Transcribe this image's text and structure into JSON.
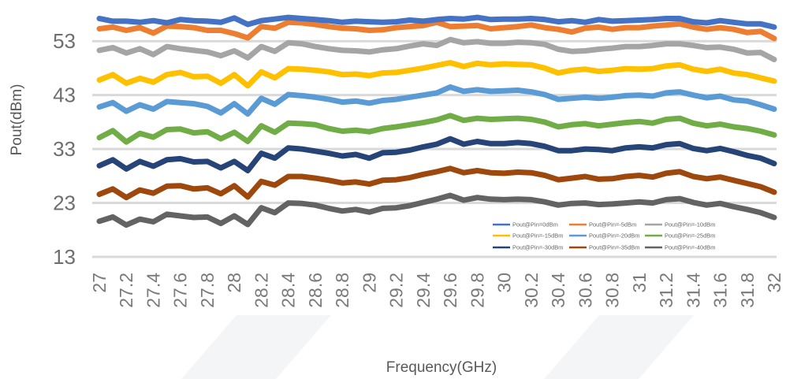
{
  "chart_data": {
    "type": "line",
    "title": "",
    "xlabel": "Frequency(GHz)",
    "ylabel": "Pout(dBm)",
    "ylim": [
      13,
      58
    ],
    "yticks": [
      "13",
      "23",
      "33",
      "43",
      "53"
    ],
    "grid": true,
    "legend_position": "bottom-right",
    "x": [
      27,
      27.1,
      27.2,
      27.3,
      27.4,
      27.5,
      27.6,
      27.7,
      27.8,
      27.9,
      28,
      28.1,
      28.2,
      28.3,
      28.4,
      28.5,
      28.6,
      28.7,
      28.8,
      28.9,
      29,
      29.1,
      29.2,
      29.3,
      29.4,
      29.5,
      29.6,
      29.7,
      29.8,
      29.9,
      30,
      30.1,
      30.2,
      30.3,
      30.4,
      30.5,
      30.6,
      30.7,
      30.8,
      30.9,
      31,
      31.1,
      31.2,
      31.3,
      31.4,
      31.5,
      31.6,
      31.7,
      31.8,
      31.9,
      32
    ],
    "xticks": [
      "27",
      "27.2",
      "27.4",
      "27.6",
      "27.8",
      "28",
      "28.2",
      "28.4",
      "28.6",
      "28.8",
      "29",
      "29.2",
      "29.4",
      "29.6",
      "29.8",
      "30",
      "30.2",
      "30.4",
      "30.6",
      "30.8",
      "31",
      "31.2",
      "31.4",
      "31.6",
      "31.8",
      "32"
    ],
    "series": [
      {
        "name": "Pout@Pin=0dBm",
        "color": "#4472C4",
        "values": [
          57.2,
          56.7,
          56.7,
          56.5,
          56.8,
          56.4,
          57.0,
          56.8,
          56.7,
          56.5,
          57.3,
          56.1,
          56.8,
          57.1,
          57.4,
          57.2,
          57.0,
          56.8,
          56.5,
          56.7,
          56.6,
          56.5,
          56.6,
          56.9,
          56.7,
          57.0,
          57.2,
          57.1,
          57.4,
          57.0,
          57.1,
          57.1,
          57.2,
          57.0,
          56.6,
          56.8,
          56.5,
          57.0,
          56.7,
          56.8,
          56.9,
          57.0,
          57.2,
          57.2,
          56.6,
          56.4,
          56.8,
          56.5,
          56.2,
          56.2,
          55.6
        ]
      },
      {
        "name": "Pout@Pin=-5dBm",
        "color": "#ED7D31",
        "values": [
          55.3,
          55.6,
          55.0,
          55.5,
          54.5,
          55.8,
          55.7,
          55.5,
          55.0,
          55.0,
          54.4,
          53.6,
          55.7,
          55.4,
          56.5,
          56.4,
          56.1,
          55.7,
          55.4,
          55.3,
          55.0,
          55.1,
          55.5,
          55.7,
          55.9,
          56.5,
          55.7,
          55.8,
          55.9,
          55.3,
          55.5,
          55.7,
          56.0,
          55.5,
          55.2,
          54.7,
          55.4,
          55.6,
          55.2,
          55.5,
          55.5,
          55.8,
          56.0,
          56.2,
          55.6,
          55.2,
          55.5,
          55.2,
          54.6,
          54.8,
          53.5
        ]
      },
      {
        "name": "Pout@Pin=-10dBm",
        "color": "#A5A5A5",
        "values": [
          51.3,
          51.8,
          50.8,
          51.6,
          50.5,
          52.0,
          51.6,
          51.3,
          51.0,
          50.3,
          51.2,
          49.9,
          52.0,
          51.1,
          52.7,
          52.5,
          52.0,
          51.6,
          51.3,
          51.2,
          51.0,
          51.4,
          51.6,
          52.1,
          52.5,
          52.2,
          53.3,
          52.7,
          52.9,
          52.6,
          52.6,
          52.8,
          52.7,
          52.4,
          51.5,
          51.1,
          51.2,
          51.5,
          51.7,
          52.0,
          52.0,
          52.2,
          52.5,
          52.5,
          52.2,
          51.8,
          51.9,
          51.5,
          50.8,
          50.9,
          49.6
        ]
      },
      {
        "name": "Pout@Pin=-15dBm",
        "color": "#FFC000",
        "values": [
          45.8,
          46.8,
          45.2,
          46.1,
          45.4,
          46.8,
          47.2,
          46.4,
          46.5,
          45.2,
          46.8,
          44.7,
          47.3,
          46.2,
          47.9,
          47.8,
          47.6,
          47.3,
          46.8,
          46.9,
          46.6,
          47.1,
          47.2,
          47.6,
          48.0,
          48.5,
          49.0,
          48.3,
          48.9,
          48.6,
          48.8,
          48.7,
          48.6,
          48.0,
          47.1,
          47.6,
          47.8,
          47.4,
          47.6,
          47.9,
          47.8,
          47.9,
          48.4,
          48.6,
          47.8,
          47.4,
          47.8,
          47.1,
          46.8,
          46.2,
          45.6
        ]
      },
      {
        "name": "Pout@Pin=-20dBm",
        "color": "#5B9BD5",
        "values": [
          40.8,
          41.6,
          40.0,
          41.2,
          40.4,
          41.8,
          41.6,
          41.4,
          40.9,
          39.7,
          41.4,
          39.5,
          42.4,
          41.3,
          43.1,
          42.9,
          42.6,
          42.2,
          41.7,
          41.9,
          41.5,
          42.0,
          42.2,
          42.6,
          43.0,
          43.4,
          44.5,
          43.7,
          44.0,
          43.7,
          43.8,
          43.9,
          43.6,
          43.1,
          42.2,
          42.4,
          42.6,
          42.4,
          42.6,
          42.9,
          43.0,
          42.8,
          43.4,
          43.6,
          43.0,
          42.5,
          42.8,
          42.1,
          41.9,
          41.2,
          40.4
        ]
      },
      {
        "name": "Pout@Pin=-25dBm",
        "color": "#70AD47",
        "values": [
          35.1,
          36.4,
          34.3,
          35.9,
          35.2,
          36.6,
          36.7,
          36.0,
          36.2,
          34.9,
          36.1,
          34.4,
          37.3,
          36.1,
          37.8,
          37.7,
          37.5,
          36.8,
          36.3,
          36.5,
          36.2,
          36.8,
          37.1,
          37.5,
          37.9,
          38.4,
          39.2,
          38.3,
          38.7,
          38.5,
          38.6,
          38.7,
          38.5,
          38.0,
          37.1,
          37.5,
          37.7,
          37.3,
          37.6,
          37.9,
          38.1,
          37.8,
          38.5,
          38.7,
          37.8,
          37.3,
          37.6,
          37.1,
          36.8,
          36.3,
          35.6
        ]
      },
      {
        "name": "Pout@Pin=-30dBm",
        "color": "#264478",
        "values": [
          29.9,
          31.0,
          29.3,
          30.7,
          29.8,
          31.0,
          31.2,
          30.6,
          30.7,
          29.5,
          30.7,
          29.0,
          32.2,
          31.3,
          33.2,
          33.0,
          32.6,
          32.2,
          31.7,
          32.0,
          31.3,
          32.3,
          32.4,
          32.8,
          33.4,
          33.9,
          34.9,
          33.9,
          34.4,
          34.0,
          34.0,
          34.2,
          34.0,
          33.5,
          32.7,
          32.7,
          33.0,
          32.9,
          32.7,
          33.2,
          33.4,
          33.2,
          33.8,
          34.0,
          33.1,
          32.7,
          33.1,
          32.5,
          31.8,
          31.3,
          30.3
        ]
      },
      {
        "name": "Pout@Pin=-35dBm",
        "color": "#9E480E",
        "values": [
          24.6,
          25.6,
          24.0,
          25.4,
          24.8,
          26.1,
          26.2,
          25.6,
          25.8,
          24.7,
          26.2,
          24.1,
          27.0,
          26.3,
          27.9,
          27.9,
          27.6,
          27.2,
          26.7,
          26.9,
          26.5,
          27.2,
          27.3,
          27.7,
          28.3,
          28.8,
          29.4,
          28.6,
          29.0,
          28.6,
          28.5,
          28.7,
          28.6,
          28.1,
          27.3,
          27.6,
          27.9,
          27.4,
          27.5,
          27.9,
          28.1,
          27.8,
          28.5,
          28.8,
          27.9,
          27.5,
          27.8,
          27.2,
          26.6,
          26.0,
          25.0
        ]
      },
      {
        "name": "Pout@Pin=-40dBm",
        "color": "#636363",
        "values": [
          19.6,
          20.4,
          18.9,
          20.0,
          19.5,
          20.9,
          20.6,
          20.3,
          20.4,
          19.2,
          20.6,
          19.0,
          22.1,
          21.2,
          23.0,
          22.9,
          22.6,
          22.0,
          21.5,
          21.8,
          21.3,
          22.0,
          22.1,
          22.5,
          23.1,
          23.7,
          24.4,
          23.5,
          24.0,
          23.7,
          23.6,
          23.7,
          23.6,
          23.2,
          22.6,
          22.9,
          23.0,
          22.7,
          22.8,
          23.0,
          23.2,
          23.0,
          23.6,
          23.8,
          23.1,
          22.6,
          22.9,
          22.3,
          21.8,
          21.2,
          20.3
        ]
      }
    ]
  }
}
